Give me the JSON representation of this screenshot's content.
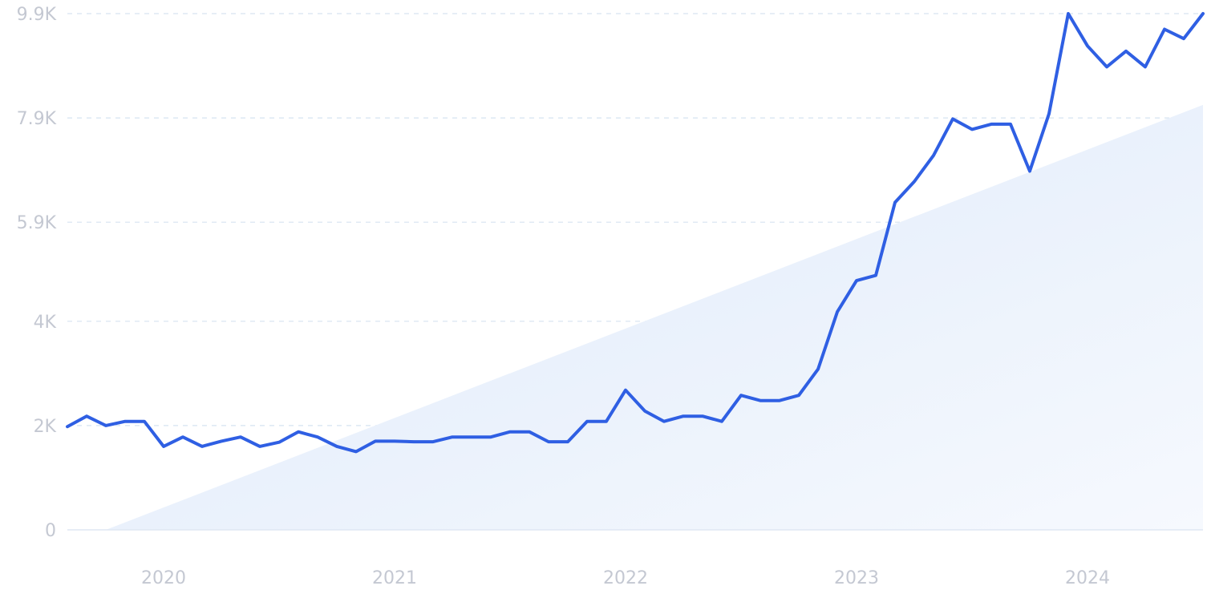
{
  "chart_data": {
    "type": "line",
    "title": "",
    "xlabel": "",
    "ylabel": "",
    "ylim": [
      0,
      9900
    ],
    "xlim": [
      "2019-10",
      "2024-08"
    ],
    "grid": true,
    "y_ticks": [
      {
        "value": 0,
        "label": "0"
      },
      {
        "value": 2000,
        "label": "2K"
      },
      {
        "value": 4000,
        "label": "4K"
      },
      {
        "value": 5900,
        "label": "5.9K"
      },
      {
        "value": 7900,
        "label": "7.9K"
      },
      {
        "value": 9900,
        "label": "9.9K"
      }
    ],
    "x_ticks": [
      {
        "date": "2020-03",
        "label": "2020"
      },
      {
        "date": "2021-03",
        "label": "2021"
      },
      {
        "date": "2022-03",
        "label": "2022"
      },
      {
        "date": "2023-03",
        "label": "2023"
      },
      {
        "date": "2024-03",
        "label": "2024"
      }
    ],
    "series": [
      {
        "color": "#2f5fe3",
        "points": [
          [
            "2019-10",
            1980
          ],
          [
            "2019-11",
            2180
          ],
          [
            "2019-12",
            2000
          ],
          [
            "2020-01",
            2080
          ],
          [
            "2020-02",
            2080
          ],
          [
            "2020-03",
            1600
          ],
          [
            "2020-04",
            1780
          ],
          [
            "2020-05",
            1600
          ],
          [
            "2020-06",
            1700
          ],
          [
            "2020-07",
            1780
          ],
          [
            "2020-08",
            1600
          ],
          [
            "2020-09",
            1680
          ],
          [
            "2020-10",
            1880
          ],
          [
            "2020-11",
            1780
          ],
          [
            "2020-12",
            1600
          ],
          [
            "2021-01",
            1500
          ],
          [
            "2021-02",
            1700
          ],
          [
            "2021-03",
            1700
          ],
          [
            "2021-04",
            1690
          ],
          [
            "2021-05",
            1690
          ],
          [
            "2021-06",
            1780
          ],
          [
            "2021-07",
            1780
          ],
          [
            "2021-08",
            1780
          ],
          [
            "2021-09",
            1880
          ],
          [
            "2021-10",
            1880
          ],
          [
            "2021-11",
            1690
          ],
          [
            "2021-12",
            1690
          ],
          [
            "2022-01",
            2080
          ],
          [
            "2022-02",
            2080
          ],
          [
            "2022-03",
            2680
          ],
          [
            "2022-04",
            2280
          ],
          [
            "2022-05",
            2080
          ],
          [
            "2022-06",
            2180
          ],
          [
            "2022-07",
            2180
          ],
          [
            "2022-08",
            2080
          ],
          [
            "2022-09",
            2580
          ],
          [
            "2022-10",
            2480
          ],
          [
            "2022-11",
            2480
          ],
          [
            "2022-12",
            2580
          ],
          [
            "2023-01",
            3080
          ],
          [
            "2023-02",
            4180
          ],
          [
            "2023-03",
            4780
          ],
          [
            "2023-04",
            4880
          ],
          [
            "2023-05",
            6280
          ],
          [
            "2023-06",
            6680
          ],
          [
            "2023-07",
            7180
          ],
          [
            "2023-08",
            7880
          ],
          [
            "2023-09",
            7680
          ],
          [
            "2023-10",
            7780
          ],
          [
            "2023-11",
            7780
          ],
          [
            "2023-12",
            6880
          ],
          [
            "2024-01",
            7980
          ],
          [
            "2024-02",
            9900
          ],
          [
            "2024-03",
            9280
          ],
          [
            "2024-04",
            8880
          ],
          [
            "2024-05",
            9180
          ],
          [
            "2024-06",
            8880
          ],
          [
            "2024-07",
            9600
          ],
          [
            "2024-08",
            9420
          ],
          [
            "2024-09",
            9900
          ]
        ]
      }
    ],
    "trend_area": {
      "start": [
        "2019-12",
        0
      ],
      "end": [
        "2024-09",
        8150
      ],
      "color": "#e3eefb"
    }
  }
}
